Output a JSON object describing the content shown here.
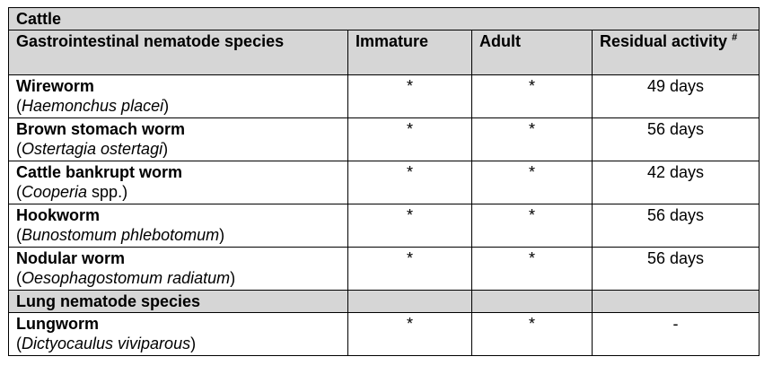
{
  "section_cattle": "Cattle",
  "headers": {
    "species": "Gastrointestinal nematode species",
    "immature": "Immature",
    "adult": "Adult",
    "residual": "Residual activity",
    "residual_mark": "#"
  },
  "rows": [
    {
      "name": "Wireworm",
      "sci_open": "(",
      "sci": "Haemonchus placei",
      "sci_close": ")",
      "immature": "*",
      "adult": "*",
      "residual": "49 days"
    },
    {
      "name": "Brown stomach worm",
      "sci_open": "(",
      "sci": "Ostertagia ostertagi",
      "sci_close": ")",
      "immature": "*",
      "adult": "*",
      "residual": "56 days"
    },
    {
      "name": "Cattle bankrupt worm",
      "sci_open": "(",
      "sci": "Cooperia",
      "sci_close": " spp.)",
      "immature": "*",
      "adult": "*",
      "residual": "42 days"
    },
    {
      "name": "Hookworm",
      "sci_open": "(",
      "sci": "Bunostomum phlebotomum",
      "sci_close": ")",
      "immature": "*",
      "adult": "*",
      "residual": "56 days"
    },
    {
      "name": "Nodular worm",
      "sci_open": "(",
      "sci": "Oesophagostomum radiatum",
      "sci_close": ")",
      "immature": "*",
      "adult": "*",
      "residual": "56 days"
    }
  ],
  "section_lung": "Lung nematode species",
  "lung_row": {
    "name": "Lungworm",
    "sci_open": "(",
    "sci": "Dictyocaulus viviparous",
    "sci_close": ")",
    "immature": "*",
    "adult": "*",
    "residual": "-"
  }
}
